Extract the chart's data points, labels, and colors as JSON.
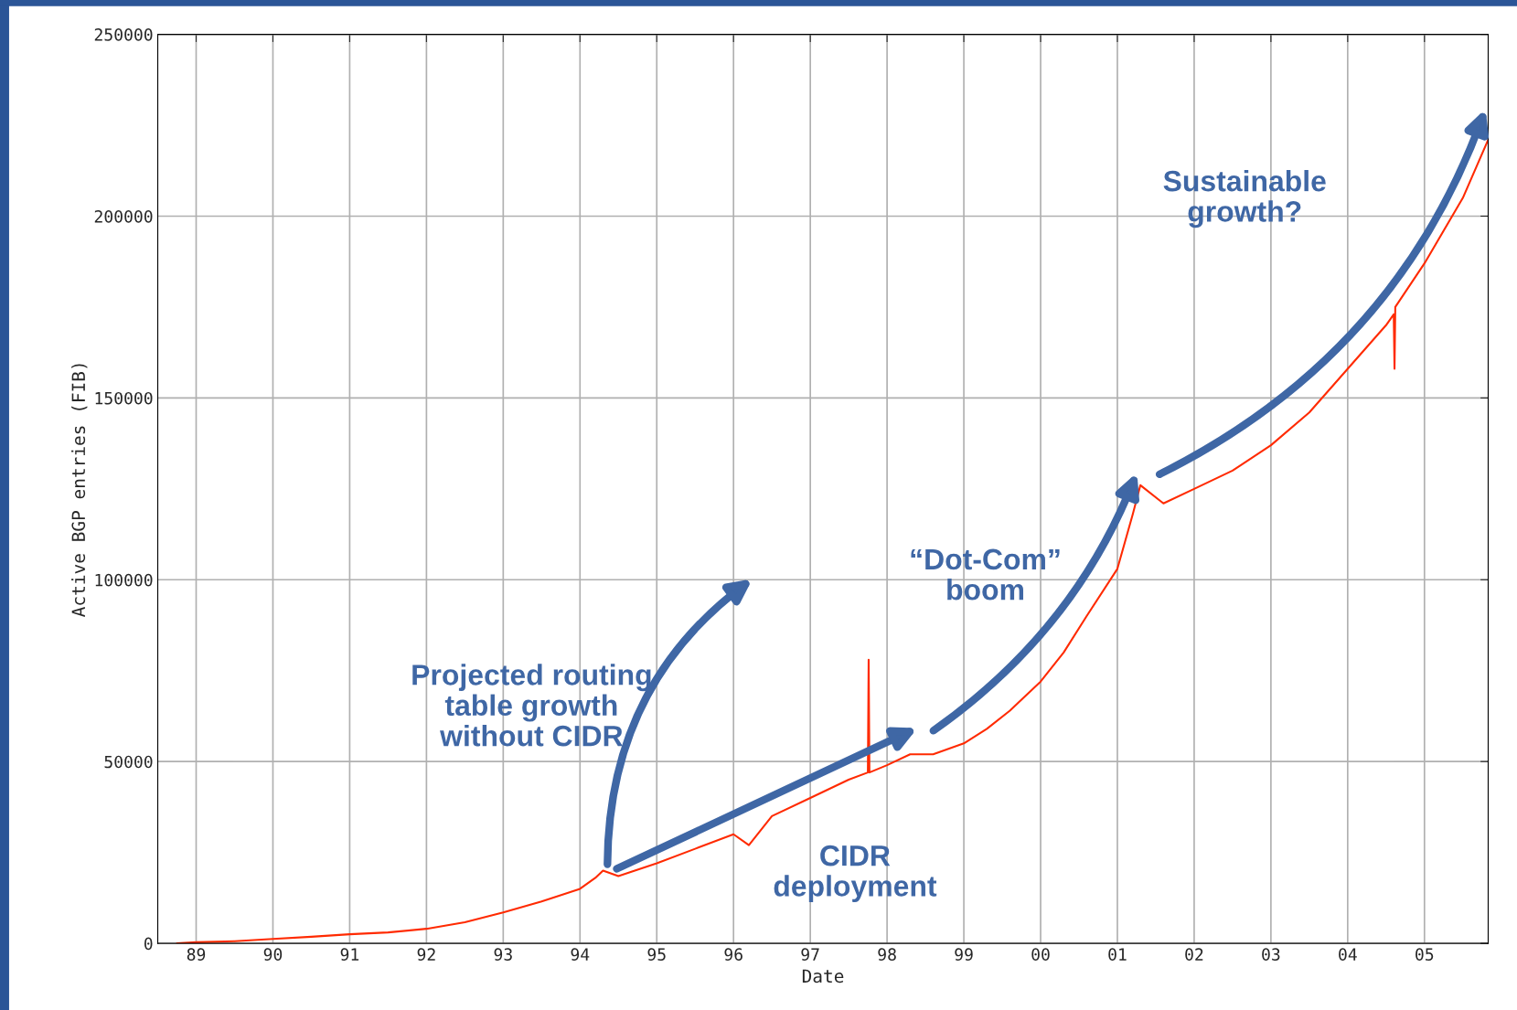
{
  "chart_data": {
    "type": "line",
    "xlabel": "Date",
    "ylabel": "Active BGP entries (FIB)",
    "x": [
      1988.75,
      1989.0,
      1989.5,
      1990.0,
      1990.5,
      1991.0,
      1991.5,
      1992.0,
      1992.5,
      1993.0,
      1993.5,
      1994.0,
      1994.2,
      1994.3,
      1994.5,
      1995.0,
      1995.5,
      1996.0,
      1996.2,
      1996.5,
      1997.0,
      1997.5,
      1997.75,
      1997.76,
      1997.77,
      1998.0,
      1998.3,
      1998.6,
      1999.0,
      1999.3,
      1999.6,
      2000.0,
      2000.3,
      2000.6,
      2001.0,
      2001.2,
      2001.3,
      2001.6,
      2002.0,
      2002.5,
      2003.0,
      2003.5,
      2004.0,
      2004.5,
      2004.6,
      2004.61,
      2004.62,
      2005.0,
      2005.5,
      2005.83
    ],
    "series": [
      {
        "color": "#ff2a00",
        "values": [
          0,
          300,
          600,
          1200,
          1800,
          2500,
          3000,
          4000,
          5800,
          8500,
          11500,
          15000,
          18000,
          20000,
          18500,
          22000,
          26000,
          30000,
          27000,
          35000,
          40000,
          45000,
          47000,
          78000,
          47000,
          49000,
          52000,
          52000,
          55000,
          59000,
          64000,
          72000,
          80000,
          90000,
          103000,
          118000,
          126000,
          121000,
          125000,
          130000,
          137000,
          146000,
          158000,
          170000,
          173000,
          158000,
          175000,
          187000,
          205000,
          221000
        ]
      }
    ],
    "xlim": [
      1988.5,
      2005.83
    ],
    "xticks": [
      {
        "value": 1989,
        "label": "89"
      },
      {
        "value": 1990,
        "label": "90"
      },
      {
        "value": 1991,
        "label": "91"
      },
      {
        "value": 1992,
        "label": "92"
      },
      {
        "value": 1993,
        "label": "93"
      },
      {
        "value": 1994,
        "label": "94"
      },
      {
        "value": 1995,
        "label": "95"
      },
      {
        "value": 1996,
        "label": "96"
      },
      {
        "value": 1997,
        "label": "97"
      },
      {
        "value": 1998,
        "label": "98"
      },
      {
        "value": 1999,
        "label": "99"
      },
      {
        "value": 2000,
        "label": "00"
      },
      {
        "value": 2001,
        "label": "01"
      },
      {
        "value": 2002,
        "label": "02"
      },
      {
        "value": 2003,
        "label": "03"
      },
      {
        "value": 2004,
        "label": "04"
      },
      {
        "value": 2005,
        "label": "05"
      }
    ],
    "ylim": [
      0,
      250000
    ],
    "yticks": [
      0,
      50000,
      100000,
      150000,
      200000,
      250000
    ],
    "grid": true,
    "annotations": [
      "Projected routing\ntable growth\nwithout CIDR",
      "CIDR\ndeployment",
      "“Dot-Com”\nboom",
      "Sustainable\ngrowth?"
    ]
  }
}
